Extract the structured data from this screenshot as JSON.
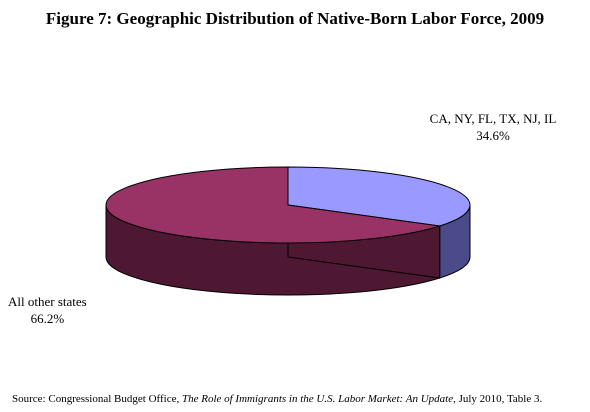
{
  "chart_data": {
    "type": "pie",
    "title": "Figure 7: Geographic Distribution of Native-Born Labor Force, 2009",
    "slices": [
      {
        "label": "CA, NY, FL, TX, NJ, IL",
        "value": 34.6,
        "value_label": "34.6%",
        "color": "#9999ff",
        "side_color": "#4b4b8a"
      },
      {
        "label": "All other states",
        "value": 66.2,
        "value_label": "66.2%",
        "color": "#993366",
        "side_color": "#4f1832"
      }
    ],
    "three_d": true
  },
  "source": {
    "prefix": "Source: Congressional Budget Office, ",
    "publication": "The Role of Immigrants in the U.S. Labor Market: An Update,",
    "suffix": "  July 2010, Table 3."
  }
}
